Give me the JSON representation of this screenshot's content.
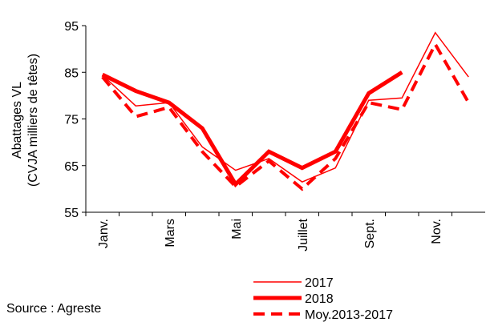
{
  "chart_data": {
    "type": "line",
    "y_label": [
      "Abattages VL",
      "(CVJA milliers de têtes)"
    ],
    "categories": [
      "Janv.",
      null,
      "Mars",
      null,
      "Mai",
      null,
      "Juillet",
      null,
      "Sept.",
      null,
      "Nov.",
      null
    ],
    "series": [
      {
        "name": "2017",
        "color": "#ff0000",
        "values": [
          84.4,
          77.8,
          78.5,
          69,
          64,
          66.5,
          61.5,
          64.5,
          79,
          79.5,
          93.5,
          84
        ]
      },
      {
        "name": "2018",
        "color": "#ff0000",
        "values": [
          84.5,
          81,
          78.5,
          73,
          61,
          68,
          64.5,
          68,
          80.5,
          85,
          null,
          null
        ]
      },
      {
        "name": "Moy.2013-2017",
        "color": "#ff0000",
        "values": [
          84,
          75.5,
          77.5,
          68,
          60.5,
          66,
          60,
          66.5,
          78.5,
          77,
          91,
          78.5
        ]
      }
    ],
    "ylim": [
      55,
      95
    ],
    "yticks": [
      55,
      65,
      75,
      85,
      95
    ],
    "source": "Source : Agreste"
  }
}
